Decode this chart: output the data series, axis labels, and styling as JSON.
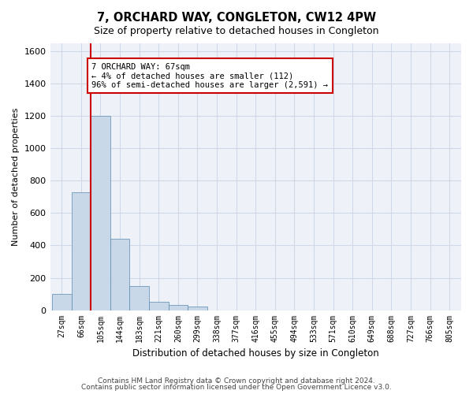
{
  "title": "7, ORCHARD WAY, CONGLETON, CW12 4PW",
  "subtitle": "Size of property relative to detached houses in Congleton",
  "xlabel": "Distribution of detached houses by size in Congleton",
  "ylabel": "Number of detached properties",
  "bar_color": "#c8d8e8",
  "bar_edge_color": "#5a8ab0",
  "bin_labels": [
    "27sqm",
    "66sqm",
    "105sqm",
    "144sqm",
    "183sqm",
    "221sqm",
    "260sqm",
    "299sqm",
    "338sqm",
    "377sqm",
    "416sqm",
    "455sqm",
    "494sqm",
    "533sqm",
    "571sqm",
    "610sqm",
    "649sqm",
    "688sqm",
    "727sqm",
    "766sqm",
    "805sqm"
  ],
  "bar_values": [
    100,
    730,
    1200,
    440,
    150,
    50,
    30,
    20,
    0,
    0,
    0,
    0,
    0,
    0,
    0,
    0,
    0,
    0,
    0,
    0,
    0
  ],
  "ylim": [
    0,
    1650
  ],
  "yticks": [
    0,
    200,
    400,
    600,
    800,
    1000,
    1200,
    1400,
    1600
  ],
  "annotation_title": "7 ORCHARD WAY: 67sqm",
  "annotation_line1": "← 4% of detached houses are smaller (112)",
  "annotation_line2": "96% of semi-detached houses are larger (2,591) →",
  "annotation_box_color": "#ffffff",
  "annotation_box_edge_color": "#cc0000",
  "vline_color": "#cc0000",
  "vline_x": 1.5,
  "footer_line1": "Contains HM Land Registry data © Crown copyright and database right 2024.",
  "footer_line2": "Contains public sector information licensed under the Open Government Licence v3.0.",
  "grid_color": "#d0d8e8",
  "background_color": "#eef2f8"
}
